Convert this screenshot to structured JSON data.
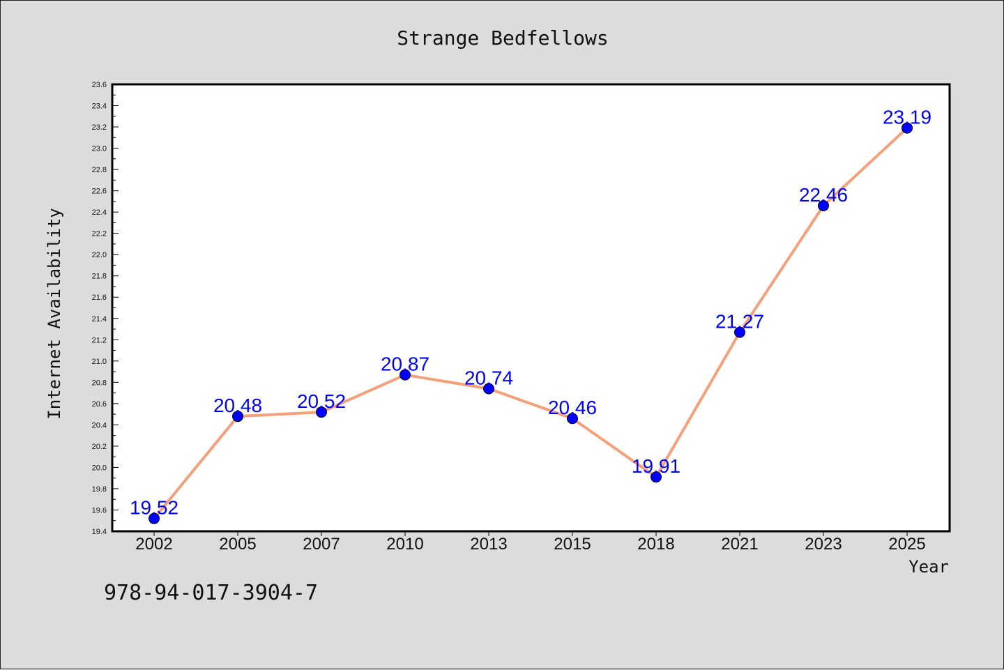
{
  "footer_text": "978-94-017-3904-7",
  "colors": {
    "background": "#dcdcdc",
    "plot_background": "#ffffff",
    "line": "#f4a07a",
    "marker": "#0000ff",
    "data_label": "#0000ff",
    "axis": "#000000"
  },
  "chart_data": {
    "type": "line",
    "title": "Strange Bedfellows",
    "xlabel": "Year",
    "ylabel": "Internet Availability",
    "categories": [
      "2002",
      "2005",
      "2007",
      "2010",
      "2013",
      "2015",
      "2018",
      "2021",
      "2023",
      "2025"
    ],
    "series": [
      {
        "values": [
          19.52,
          20.48,
          20.52,
          20.87,
          20.74,
          20.46,
          19.91,
          21.27,
          22.46,
          23.19
        ]
      }
    ],
    "data_labels": [
      "19.52",
      "20.48",
      "20.52",
      "20.87",
      "20.74",
      "20.46",
      "19.91",
      "21.27",
      "22.46",
      "23.19"
    ],
    "ylim": [
      19.4,
      23.6
    ],
    "yticks": [
      "19.4",
      "19.6",
      "19.8",
      "20.0",
      "20.2",
      "20.4",
      "20.6",
      "20.8",
      "21.0",
      "21.2",
      "21.4",
      "21.6",
      "21.8",
      "22.0",
      "22.2",
      "22.4",
      "22.6",
      "22.8",
      "23.0",
      "23.2",
      "23.4",
      "23.6"
    ],
    "grid": false,
    "legend": "none"
  }
}
